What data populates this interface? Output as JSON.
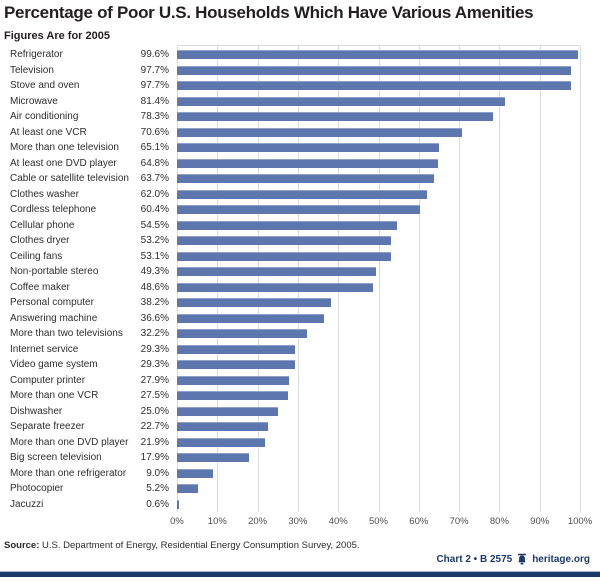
{
  "header": {
    "title": "Percentage of Poor U.S. Households Which Have Various Amenities",
    "subtitle": "Figures Are for 2005"
  },
  "chart_data": {
    "type": "bar",
    "orientation": "horizontal",
    "title": "Percentage of Poor U.S. Households Which Have Various Amenities",
    "subtitle": "Figures Are for 2005",
    "categories": [
      "Refrigerator",
      "Television",
      "Stove and oven",
      "Microwave",
      "Air conditioning",
      "At least one VCR",
      "More than one television",
      "At least one DVD player",
      "Cable or satellite television",
      "Clothes washer",
      "Cordless telephone",
      "Cellular phone",
      "Clothes dryer",
      "Ceiling fans",
      "Non-portable stereo",
      "Coffee maker",
      "Personal computer",
      "Answering machine",
      "More than two televisions",
      "Internet service",
      "Video game system",
      "Computer printer",
      "More than one VCR",
      "Dishwasher",
      "Separate freezer",
      "More than one DVD player",
      "Big screen television",
      "More than one refrigerator",
      "Photocopier",
      "Jacuzzi"
    ],
    "values": [
      99.6,
      97.7,
      97.7,
      81.4,
      78.3,
      70.6,
      65.1,
      64.8,
      63.7,
      62.0,
      60.4,
      54.5,
      53.2,
      53.1,
      49.3,
      48.6,
      38.2,
      36.6,
      32.2,
      29.3,
      29.3,
      27.9,
      27.5,
      25.0,
      22.7,
      21.9,
      17.9,
      9.0,
      5.2,
      0.6
    ],
    "value_labels": [
      "99.6%",
      "97.7%",
      "97.7%",
      "81.4%",
      "78.3%",
      "70.6%",
      "65.1%",
      "64.8%",
      "63.7%",
      "62.0%",
      "60.4%",
      "54.5%",
      "53.2%",
      "53.1%",
      "49.3%",
      "48.6%",
      "38.2%",
      "36.6%",
      "32.2%",
      "29.3%",
      "29.3%",
      "27.9%",
      "27.5%",
      "25.0%",
      "22.7%",
      "21.9%",
      "17.9%",
      "9.0%",
      "5.2%",
      "0.6%"
    ],
    "x_ticks": [
      "0%",
      "10%",
      "20%",
      "30%",
      "40%",
      "50%",
      "60%",
      "70%",
      "80%",
      "90%",
      "100%"
    ],
    "xlim": [
      0,
      100
    ],
    "grid": "vertical gridlines every 10%",
    "legend": "none"
  },
  "footer": {
    "source_label": "Source:",
    "source_text": " U.S. Department of Energy, Residential Energy Consumption Survey, 2005.",
    "chart_ref": "Chart 2 • B 2575",
    "site": "heritage.org"
  },
  "colors": {
    "bar": "#5d76ae",
    "bar_top_edge": "#8fa0c9",
    "gridline": "#d8dadd",
    "navy": "#1b3a69",
    "footer_bar": "#1b3a69",
    "footer_bar_top_edge": "#a8b6cf",
    "title_text": "#231f20",
    "label_text": "#2e2e2e",
    "tick_text": "#4d4d4d"
  }
}
